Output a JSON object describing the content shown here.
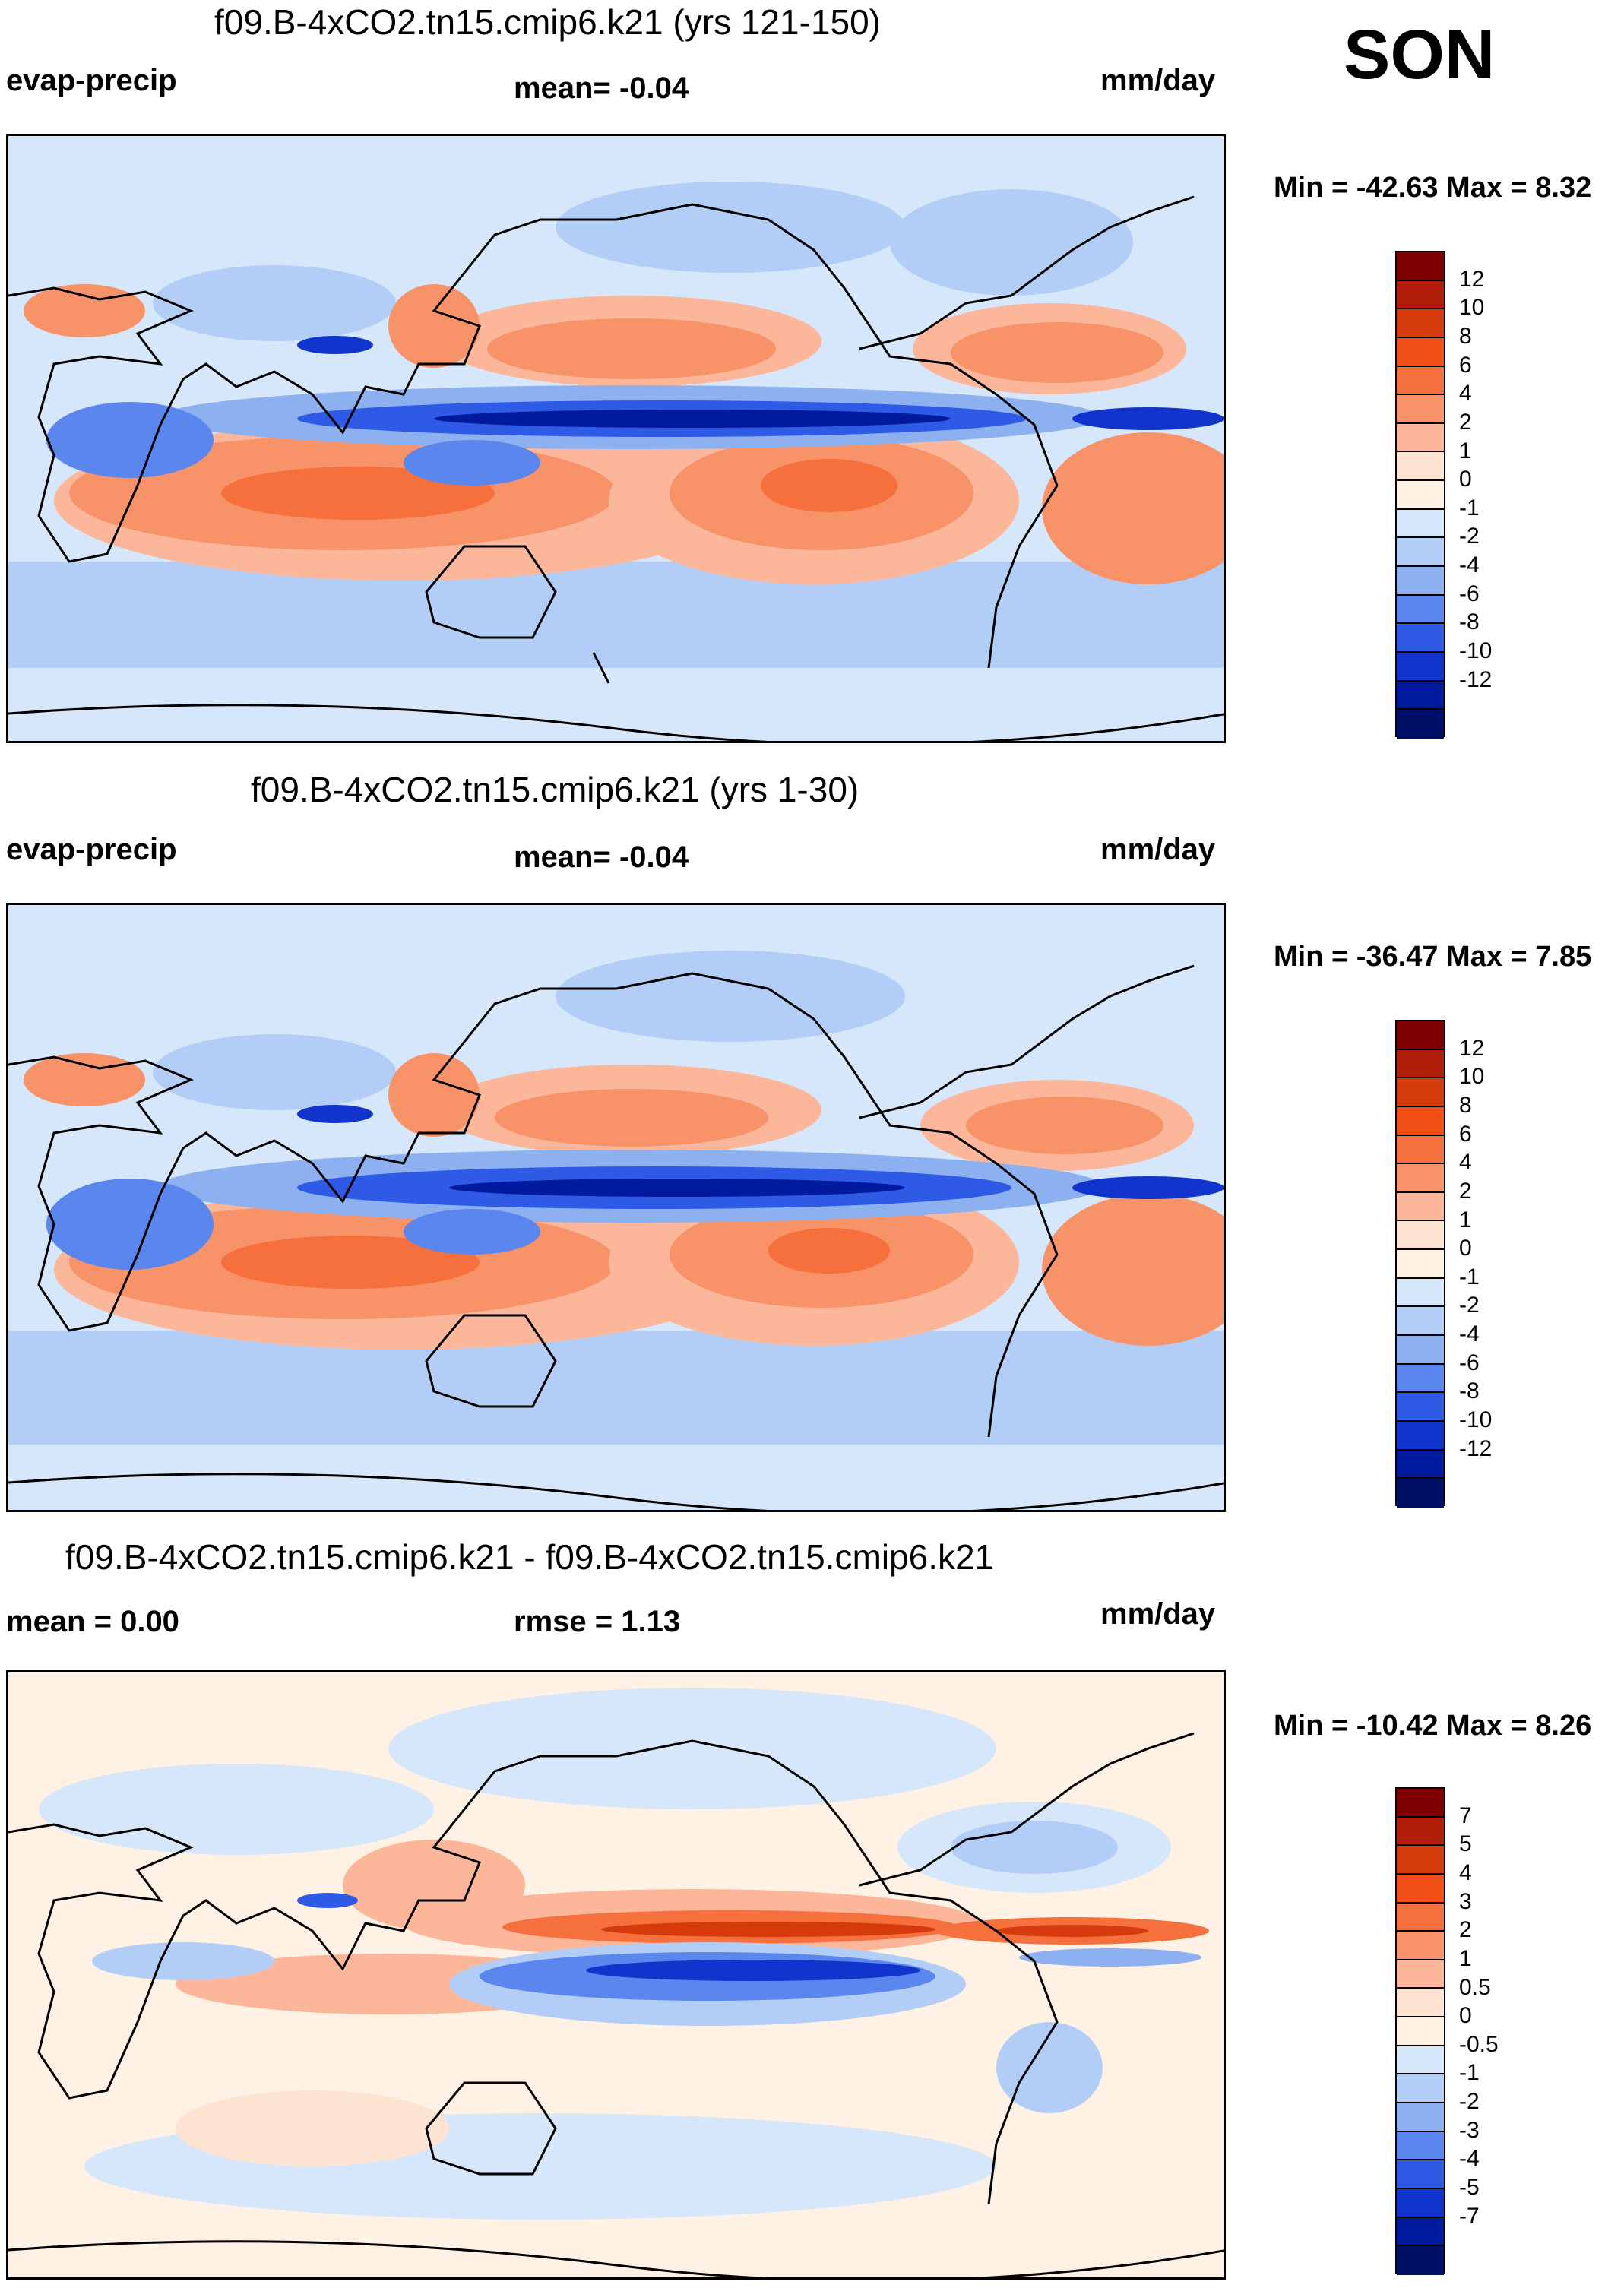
{
  "season": "SON",
  "panels": [
    {
      "title": "f09.B-4xCO2.tn15.cmip6.k21 (yrs 121-150)",
      "left_label": "evap-precip",
      "center_label": "mean=  -0.04",
      "units": "mm/day",
      "minmax": "Min = -42.63 Max =   8.32",
      "levels": [
        "12",
        "10",
        "8",
        "6",
        "4",
        "2",
        "1",
        "0",
        "-1",
        "-2",
        "-4",
        "-6",
        "-8",
        "-10",
        "-12"
      ],
      "colors": [
        "#7f0000",
        "#b01c07",
        "#d43a0c",
        "#f04e15",
        "#f5703c",
        "#f79269",
        "#fcb79b",
        "#fde3d2",
        "#fff1e4",
        "#d6e7fb",
        "#b3cef6",
        "#8cb0f0",
        "#5a86ee",
        "#2f5ae6",
        "#1134cc",
        "#001a9e",
        "#000f66"
      ]
    },
    {
      "title": "f09.B-4xCO2.tn15.cmip6.k21 (yrs 1-30)",
      "left_label": "evap-precip",
      "center_label": "mean=  -0.04",
      "units": "mm/day",
      "minmax": "Min = -36.47 Max =   7.85",
      "levels": [
        "12",
        "10",
        "8",
        "6",
        "4",
        "2",
        "1",
        "0",
        "-1",
        "-2",
        "-4",
        "-6",
        "-8",
        "-10",
        "-12"
      ],
      "colors": [
        "#7f0000",
        "#b01c07",
        "#d43a0c",
        "#f04e15",
        "#f5703c",
        "#f79269",
        "#fcb79b",
        "#fde3d2",
        "#fff1e4",
        "#d6e7fb",
        "#b3cef6",
        "#8cb0f0",
        "#5a86ee",
        "#2f5ae6",
        "#1134cc",
        "#001a9e",
        "#000f66"
      ]
    },
    {
      "title": "f09.B-4xCO2.tn15.cmip6.k21 - f09.B-4xCO2.tn15.cmip6.k21",
      "left_label": "mean =   0.00",
      "center_label": "rmse =   1.13",
      "units": "mm/day",
      "minmax": "Min = -10.42 Max =   8.26",
      "levels": [
        "7",
        "5",
        "4",
        "3",
        "2",
        "1",
        "0.5",
        "0",
        "-0.5",
        "-1",
        "-2",
        "-3",
        "-4",
        "-5",
        "-7"
      ],
      "colors": [
        "#7f0000",
        "#b01c07",
        "#d43a0c",
        "#f04e15",
        "#f5703c",
        "#f79269",
        "#fcb79b",
        "#fde3d2",
        "#fff1e4",
        "#d6e7fb",
        "#b3cef6",
        "#8cb0f0",
        "#5a86ee",
        "#2f5ae6",
        "#1134cc",
        "#001a9e",
        "#000f66"
      ]
    }
  ]
}
